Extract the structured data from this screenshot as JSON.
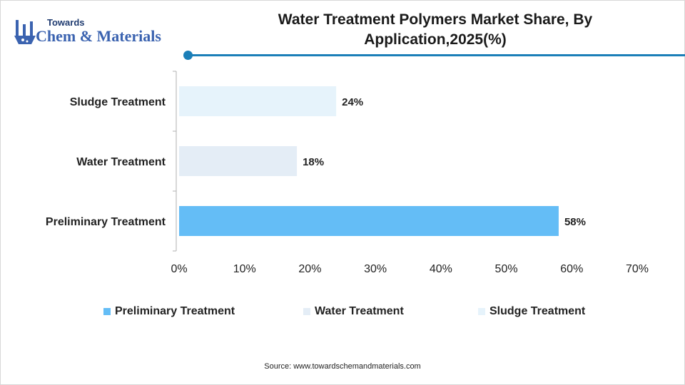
{
  "brand": {
    "top": "Towards",
    "main": "Chem & Materials"
  },
  "chart_data": {
    "type": "bar",
    "orientation": "horizontal",
    "title": "Water Treatment Polymers Market Share, By Application,2025(%)",
    "categories": [
      "Sludge Treatment",
      "Water Treatment",
      "Preliminary Treatment"
    ],
    "values": [
      24,
      18,
      58
    ],
    "value_labels": [
      "24%",
      "18%",
      "58%"
    ],
    "colors": [
      "#e6f3fb",
      "#e4edf6",
      "#64bdf6"
    ],
    "xlim": [
      0,
      70
    ],
    "xticks": [
      "0%",
      "10%",
      "20%",
      "30%",
      "40%",
      "50%",
      "60%",
      "70%"
    ],
    "grid": false,
    "legend_position": "bottom",
    "legend": [
      {
        "label": "Preliminary Treatment",
        "color": "#64bdf6"
      },
      {
        "label": "Water Treatment",
        "color": "#e4edf6"
      },
      {
        "label": "Sludge Treatment",
        "color": "#e6f3fb"
      }
    ]
  },
  "source": "Source: www.towardschemandmaterials.com"
}
